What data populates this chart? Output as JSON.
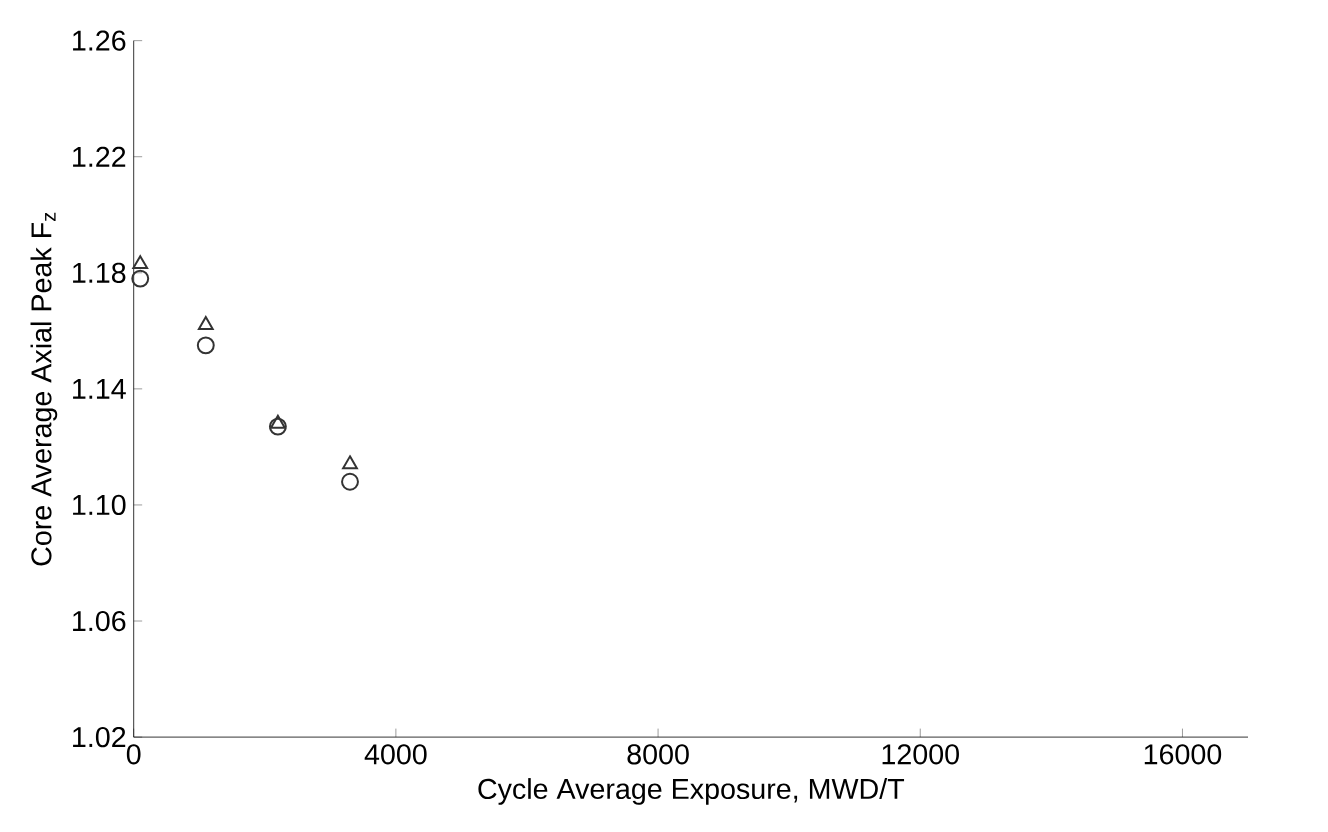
{
  "chart_data": {
    "type": "scatter",
    "xlabel": "Cycle Average Exposure, MWD/T",
    "ylabel": "Core Average Axial Peak F$_{z}$",
    "xlim": [
      0,
      17000
    ],
    "xticks": [
      0,
      4000,
      8000,
      12000,
      16000
    ],
    "ylim": [
      1.02,
      1.26
    ],
    "yticks": [
      1.02,
      1.06,
      {
        "value": 1.1,
        "label": "1.10"
      },
      1.14,
      1.18,
      1.22,
      1.26
    ],
    "grid": false,
    "series": [
      {
        "color": "#333333",
        "marker": "triangle",
        "x": [
          100,
          1100,
          2200,
          3300
        ],
        "values": [
          1.183,
          1.162,
          1.128,
          1.114
        ]
      },
      {
        "color": "#333333",
        "marker": "circle",
        "x": [
          100,
          1100,
          2200,
          3300
        ],
        "values": [
          1.178,
          1.155,
          1.127,
          1.108
        ]
      }
    ]
  }
}
